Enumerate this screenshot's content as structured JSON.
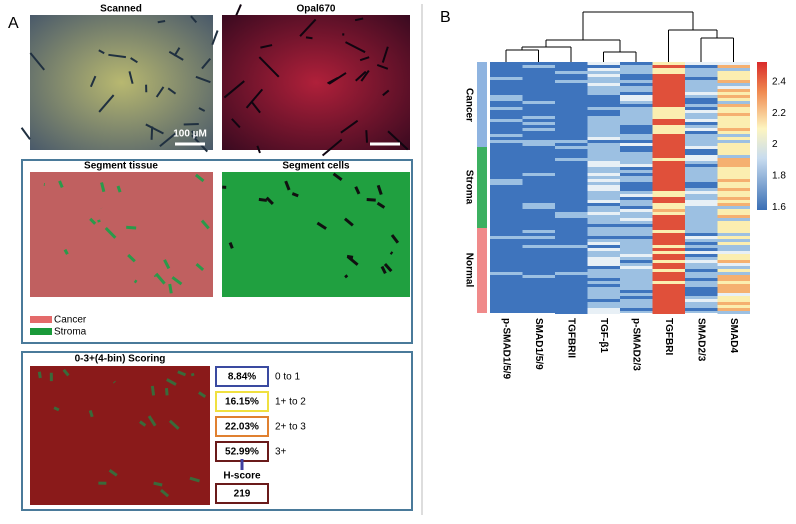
{
  "panel_a": {
    "letter": "A",
    "scanned_title": "Scanned",
    "opal_title": "Opal670",
    "scale_bar": "100 µM",
    "segment_tissue_title": "Segment tissue",
    "segment_cells_title": "Segment cells",
    "legend": [
      "Cancer",
      "Stroma"
    ],
    "scoring_title": "0-3+(4-bin) Scoring",
    "bins": [
      {
        "percent": "8.84%",
        "label": "0 to 1"
      },
      {
        "percent": "16.15%",
        "label": "1+ to 2"
      },
      {
        "percent": "22.03%",
        "label": "2+ to 3"
      },
      {
        "percent": "52.99%",
        "label": "3+"
      }
    ],
    "hscore_label": "H-score",
    "hscore": "219"
  },
  "panel_b": {
    "letter": "B",
    "row_groups": [
      "Cancer",
      "Stroma",
      "Normal"
    ],
    "columns": [
      "p-SMAD1/5/9",
      "SMAD1/5/9",
      "TGFBRII",
      "TGF-β1",
      "p-SMAD2/3",
      "TGFBRI",
      "SMAD2/3",
      "SMAD4"
    ],
    "colorbar_ticks": [
      "2.4",
      "2.2",
      "2",
      "1.8",
      "1.6"
    ]
  }
}
